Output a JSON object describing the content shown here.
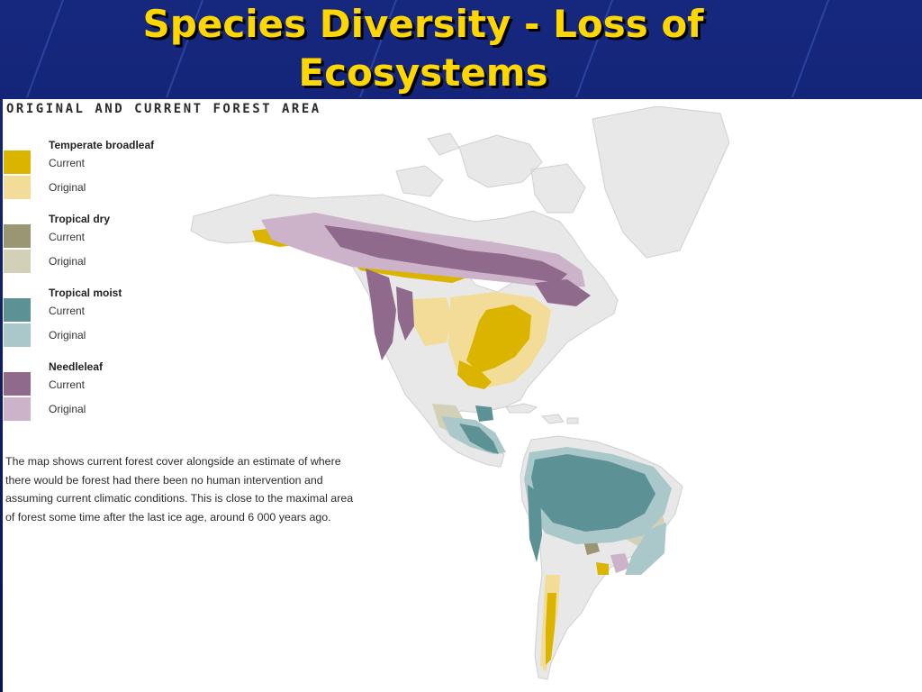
{
  "slide": {
    "title_line1": "Species Diversity - Loss of",
    "title_line2": "Ecosystems",
    "colors": {
      "background": "#0a1a6e",
      "title": "#ffd700",
      "panel": "#ffffff"
    }
  },
  "map": {
    "heading": "ORIGINAL AND CURRENT FOREST AREA",
    "legend": [
      {
        "title": "Temperate broadleaf",
        "current_label": "Current",
        "original_label": "Original",
        "current_color": "#dbb400",
        "original_color": "#f2dc98"
      },
      {
        "title": "Tropical dry",
        "current_label": "Current",
        "original_label": "Original",
        "current_color": "#9a9674",
        "original_color": "#d2d0b7"
      },
      {
        "title": "Tropical moist",
        "current_label": "Current",
        "original_label": "Original",
        "current_color": "#5c9296",
        "original_color": "#aac8c9"
      },
      {
        "title": "Needleleaf",
        "current_label": "Current",
        "original_label": "Original",
        "current_color": "#8f6a8c",
        "original_color": "#ccb3c9"
      }
    ],
    "description": "The map shows current forest cover alongside an estimate of where there would be forest had there been no human intervention and assuming current climatic conditions. This is close to the maximal area of forest some time after the last ice age, around 6 000 years ago.",
    "land_color": "#e8e8e8"
  }
}
